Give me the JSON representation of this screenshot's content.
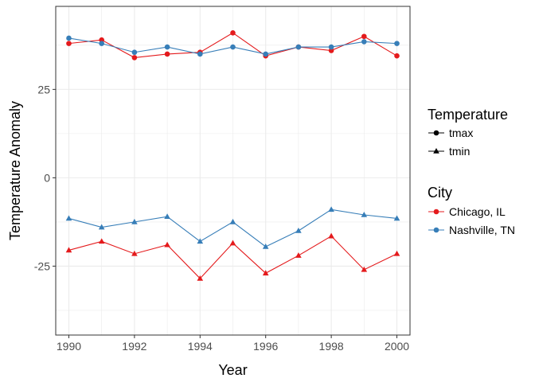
{
  "chart_data": {
    "type": "line",
    "title": "",
    "xlabel": "Year",
    "ylabel": "Temperature Anomaly",
    "x": [
      1990,
      1991,
      1992,
      1993,
      1994,
      1995,
      1996,
      1997,
      1998,
      1999,
      2000
    ],
    "x_ticks": [
      "1990",
      "1992",
      "1994",
      "1996",
      "1998",
      "2000"
    ],
    "y_ticks": [
      "25",
      "0",
      "-25"
    ],
    "xlim": [
      1989.6,
      2000.4
    ],
    "ylim": [
      -44.5,
      48.5
    ],
    "grid": true,
    "legend_position": "right",
    "legend": {
      "temperature_title": "Temperature",
      "temperature_items": [
        {
          "label": "tmax",
          "shape": "circle"
        },
        {
          "label": "tmin",
          "shape": "triangle"
        }
      ],
      "city_title": "City",
      "city_items": [
        {
          "label": "Chicago, IL",
          "color": "#e41a1c"
        },
        {
          "label": "Nashville, TN",
          "color": "#377eb8"
        }
      ]
    },
    "series": [
      {
        "name": "Chicago, IL",
        "temperature": "tmax",
        "shape": "circle",
        "color": "#e41a1c",
        "values": [
          38.0,
          39.0,
          34.0,
          35.0,
          35.5,
          41.0,
          34.5,
          37.0,
          36.0,
          40.0,
          34.5
        ]
      },
      {
        "name": "Nashville, TN",
        "temperature": "tmax",
        "shape": "circle",
        "color": "#377eb8",
        "values": [
          39.5,
          38.0,
          35.5,
          37.0,
          35.0,
          37.0,
          35.0,
          37.0,
          37.0,
          38.5,
          38.0
        ]
      },
      {
        "name": "Chicago, IL",
        "temperature": "tmin",
        "shape": "triangle",
        "color": "#e41a1c",
        "values": [
          -20.5,
          -18.0,
          -21.5,
          -19.0,
          -28.5,
          -18.5,
          -27.0,
          -22.0,
          -16.5,
          -26.0,
          -21.5
        ]
      },
      {
        "name": "Nashville, TN",
        "temperature": "tmin",
        "shape": "triangle",
        "color": "#377eb8",
        "values": [
          -11.5,
          -14.0,
          -12.5,
          -11.0,
          -18.0,
          -12.5,
          -19.5,
          -15.0,
          -9.0,
          -10.5,
          -11.5
        ]
      }
    ]
  }
}
